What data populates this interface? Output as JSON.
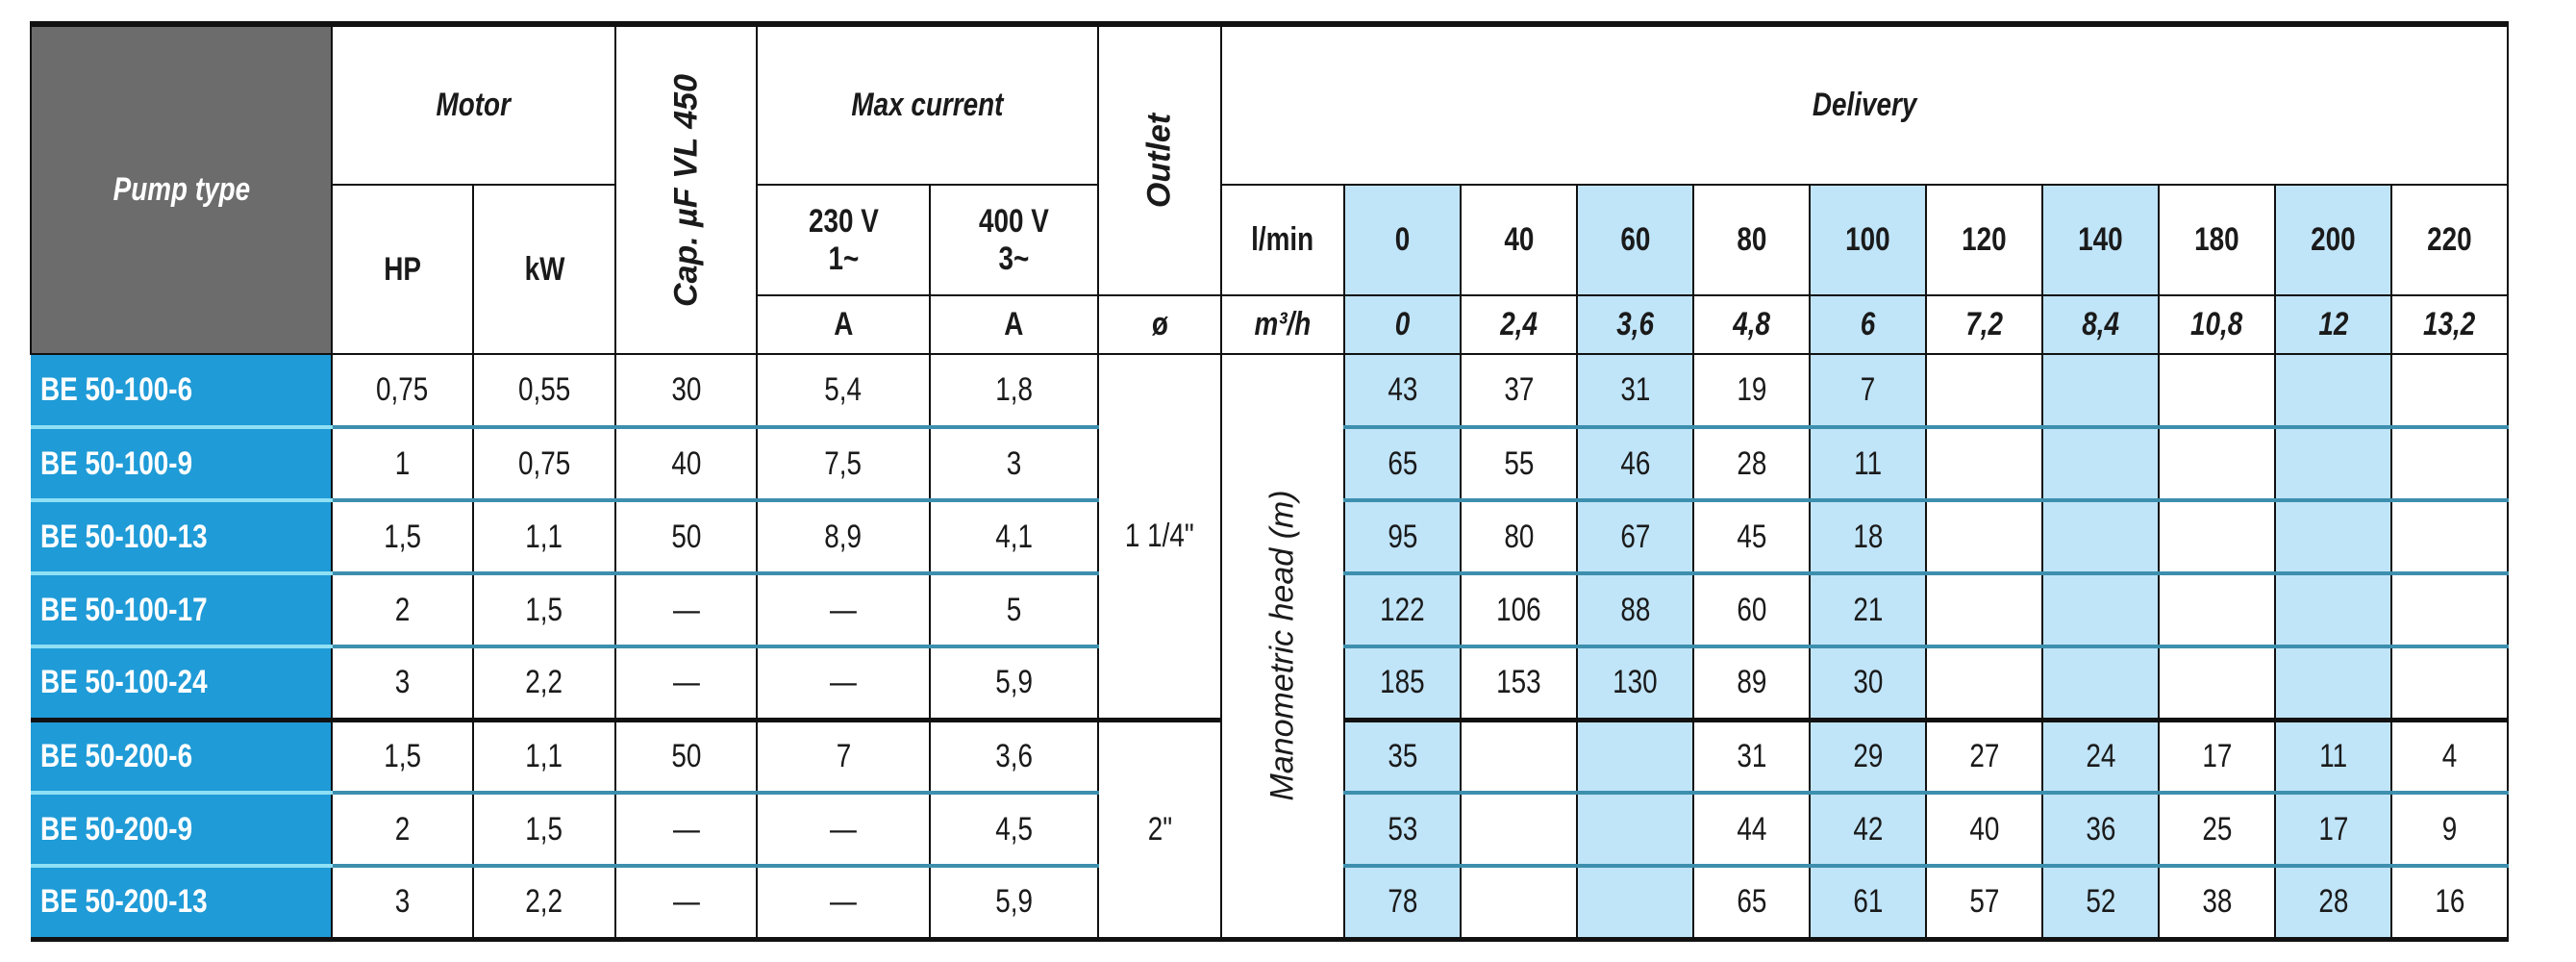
{
  "colors": {
    "header_gray": "#6c6c6c",
    "pump_blue": "#1f9bd7",
    "highlight_column": "#c0e4f8",
    "row_divider": "#3d8fae"
  },
  "header": {
    "pump_type": "Pump type",
    "motor": "Motor",
    "hp": "HP",
    "kw": "kW",
    "cap": "Cap. µF VL 450",
    "max_current": "Max current",
    "v230": "230 V",
    "v230_phase": "1~",
    "v400": "400 V",
    "v400_phase": "3~",
    "amp1": "A",
    "amp2": "A",
    "outlet": "Outlet",
    "outlet_unit": "ø",
    "delivery": "Delivery",
    "lmin_label": "l/min",
    "m3h_label": "m³/h",
    "lmin": [
      "0",
      "40",
      "60",
      "80",
      "100",
      "120",
      "140",
      "180",
      "200",
      "220"
    ],
    "m3h": [
      "0",
      "2,4",
      "3,6",
      "4,8",
      "6",
      "7,2",
      "8,4",
      "10,8",
      "12",
      "13,2"
    ],
    "highlight_columns": [
      0,
      2,
      4,
      6,
      8
    ]
  },
  "manometric_head": "Manometric head (m)",
  "outlets": [
    "1 1/4\"",
    "2\""
  ],
  "rows": [
    {
      "type": "BE 50-100-6",
      "hp": "0,75",
      "kw": "0,55",
      "cap": "30",
      "a230": "5,4",
      "a400": "1,8",
      "head": [
        "43",
        "37",
        "31",
        "19",
        "7",
        "",
        "",
        "",
        "",
        ""
      ]
    },
    {
      "type": "BE 50-100-9",
      "hp": "1",
      "kw": "0,75",
      "cap": "40",
      "a230": "7,5",
      "a400": "3",
      "head": [
        "65",
        "55",
        "46",
        "28",
        "11",
        "",
        "",
        "",
        "",
        ""
      ]
    },
    {
      "type": "BE 50-100-13",
      "hp": "1,5",
      "kw": "1,1",
      "cap": "50",
      "a230": "8,9",
      "a400": "4,1",
      "head": [
        "95",
        "80",
        "67",
        "45",
        "18",
        "",
        "",
        "",
        "",
        ""
      ]
    },
    {
      "type": "BE 50-100-17",
      "hp": "2",
      "kw": "1,5",
      "cap": "—",
      "a230": "—",
      "a400": "5",
      "head": [
        "122",
        "106",
        "88",
        "60",
        "21",
        "",
        "",
        "",
        "",
        ""
      ]
    },
    {
      "type": "BE 50-100-24",
      "hp": "3",
      "kw": "2,2",
      "cap": "—",
      "a230": "—",
      "a400": "5,9",
      "head": [
        "185",
        "153",
        "130",
        "89",
        "30",
        "",
        "",
        "",
        "",
        ""
      ]
    },
    {
      "type": "BE 50-200-6",
      "hp": "1,5",
      "kw": "1,1",
      "cap": "50",
      "a230": "7",
      "a400": "3,6",
      "head": [
        "35",
        "",
        "",
        "31",
        "29",
        "27",
        "24",
        "17",
        "11",
        "4"
      ]
    },
    {
      "type": "BE 50-200-9",
      "hp": "2",
      "kw": "1,5",
      "cap": "—",
      "a230": "—",
      "a400": "4,5",
      "head": [
        "53",
        "",
        "",
        "44",
        "42",
        "40",
        "36",
        "25",
        "17",
        "9"
      ]
    },
    {
      "type": "BE 50-200-13",
      "hp": "3",
      "kw": "2,2",
      "cap": "—",
      "a230": "—",
      "a400": "5,9",
      "head": [
        "78",
        "",
        "",
        "65",
        "61",
        "57",
        "52",
        "38",
        "28",
        "16"
      ]
    }
  ]
}
